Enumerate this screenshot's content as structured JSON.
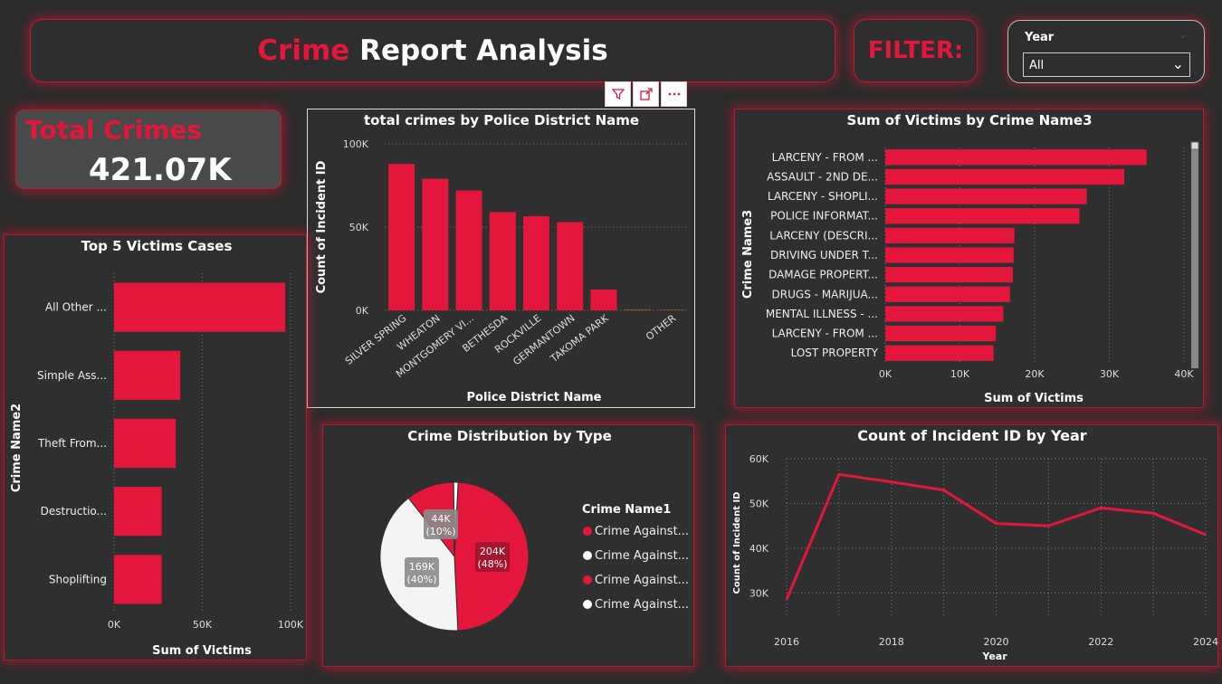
{
  "header": {
    "title_red": "Crime",
    "title_white": "Report Analysis"
  },
  "filter": {
    "label": "FILTER:"
  },
  "slicer": {
    "label": "Year",
    "selected": "All"
  },
  "toolbar": {
    "icons": [
      "filter-icon",
      "focus-mode-icon",
      "more-options-icon"
    ]
  },
  "kpi": {
    "label": "Total Crimes",
    "value": "421.07K"
  },
  "colors": {
    "accent": "#e4163b",
    "background": "#2c2c2c"
  },
  "chart_data": [
    {
      "id": "district",
      "type": "bar",
      "title": "total crimes by Police District Name",
      "xlabel": "Police District Name",
      "ylabel": "Count of Incident ID",
      "categories": [
        "SILVER SPRING",
        "WHEATON",
        "MONTGOMERY VI...",
        "BETHESDA",
        "ROCKVILLE",
        "GERMANTOWN",
        "TAKOMA PARK",
        "",
        "OTHER"
      ],
      "values": [
        88000,
        79000,
        72000,
        59000,
        56500,
        53000,
        12500,
        400,
        300
      ],
      "yticks": [
        "100K",
        "50K",
        "0K"
      ],
      "ylim": [
        0,
        100000
      ]
    },
    {
      "id": "victims3",
      "type": "bar",
      "title": "Sum of Victims by Crime Name3",
      "xlabel": "Sum of Victims",
      "ylabel": "Crime Name3",
      "categories": [
        "LARCENY - FROM ...",
        "ASSAULT - 2ND DE...",
        "LARCENY - SHOPLI...",
        "POLICE INFORMAT...",
        "LARCENY (DESCRI...",
        "DRIVING UNDER T...",
        "DAMAGE PROPERT...",
        "DRUGS - MARIJUA...",
        "MENTAL ILLNESS - ...",
        "LARCENY - FROM ...",
        "LOST PROPERTY"
      ],
      "values": [
        35000,
        32000,
        27000,
        26000,
        17300,
        17200,
        17100,
        16700,
        15800,
        14800,
        14500
      ],
      "xticks": [
        "0K",
        "10K",
        "20K",
        "30K",
        "40K"
      ],
      "xlim": [
        0,
        40000
      ]
    },
    {
      "id": "top5",
      "type": "bar",
      "title": "Top 5 Victims Cases",
      "xlabel": "Sum of Victims",
      "ylabel": "Crime Name2",
      "categories": [
        "All Other ...",
        "Simple Ass...",
        "Theft From...",
        "Destructio...",
        "Shoplifting"
      ],
      "values": [
        97000,
        37500,
        35000,
        27000,
        27000
      ],
      "xticks": [
        "0K",
        "50K",
        "100K"
      ],
      "xlim": [
        0,
        100000
      ]
    },
    {
      "id": "pie",
      "type": "pie",
      "title": "Crime Distribution by Type",
      "legend_title": "Crime Name1",
      "legend": [
        "Crime Against...",
        "Crime Against...",
        "Crime Against...",
        "Crime Against..."
      ],
      "slices": [
        {
          "label": "204K",
          "pct": "(48%)",
          "value": 204,
          "color": "#e4163b"
        },
        {
          "label": "169K",
          "pct": "(40%)",
          "value": 169,
          "color": "#f4f4f4"
        },
        {
          "label": "44K",
          "pct": "(10%)",
          "value": 44,
          "color": "#e4163b"
        },
        {
          "label": "",
          "pct": "",
          "value": 4,
          "color": "#ffffff"
        }
      ]
    },
    {
      "id": "line",
      "type": "line",
      "title": "Count of Incident ID by Year",
      "xlabel": "Year",
      "ylabel": "Count of Incident ID",
      "x": [
        2016,
        2017,
        2018,
        2019,
        2020,
        2021,
        2022,
        2023,
        2024
      ],
      "y": [
        28500,
        56500,
        54800,
        53000,
        45500,
        45000,
        49000,
        47800,
        43000
      ],
      "xticks": [
        "2016",
        "2018",
        "2020",
        "2022",
        "2024"
      ],
      "yticks": [
        "60K",
        "50K",
        "40K",
        "30K"
      ],
      "xlim": [
        2016,
        2024
      ],
      "ylim": [
        25000,
        60000
      ]
    }
  ]
}
